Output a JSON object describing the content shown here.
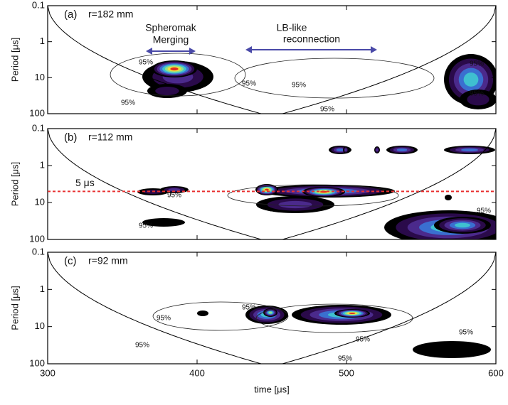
{
  "chart_data": [
    {
      "type": "wavelet",
      "panel_label": "(a)",
      "title": "r=182 mm",
      "y_label": "Period [μs]",
      "xlim": [
        300,
        600
      ],
      "xticks": [
        300,
        400,
        500,
        600
      ],
      "ylim": [
        0.1,
        100
      ],
      "yticks": [
        0.1,
        1,
        10,
        100
      ],
      "yscale": "log",
      "y_reversed": true,
      "contour_label": "95%",
      "annotations": [
        "Spheromak",
        "Merging",
        "LB-like",
        "reconnection"
      ],
      "arrow_color": "#4a4aa8"
    },
    {
      "type": "wavelet",
      "panel_label": "(b)",
      "title": "r=112 mm",
      "y_label": "Period [μs]",
      "xlim": [
        300,
        600
      ],
      "xticks": [
        300,
        400,
        500,
        600
      ],
      "ylim": [
        0.1,
        100
      ],
      "yticks": [
        0.1,
        1,
        10,
        100
      ],
      "yscale": "log",
      "y_reversed": true,
      "contour_label": "95%",
      "reference_line": {
        "value": 5,
        "label": "5 μs",
        "color": "#e83030"
      }
    },
    {
      "type": "wavelet",
      "panel_label": "(c)",
      "title": "r=92 mm",
      "y_label": "Period [μs]",
      "xlim": [
        300,
        600
      ],
      "xticks": [
        300,
        400,
        500,
        600
      ],
      "ylim": [
        0.1,
        100
      ],
      "yticks": [
        0.1,
        1,
        10,
        100
      ],
      "yscale": "log",
      "y_reversed": true,
      "contour_label": "95%",
      "x_label": "time [μs]"
    }
  ]
}
